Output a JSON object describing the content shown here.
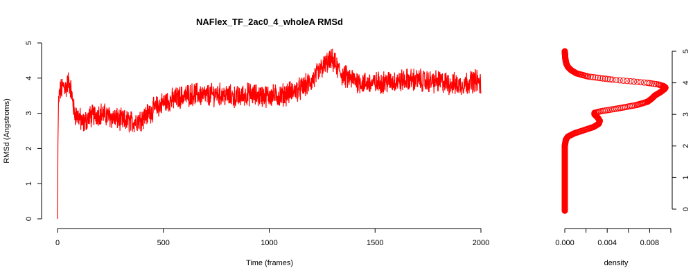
{
  "chart_data": [
    {
      "type": "line",
      "title": "NAFlex_TF_2ac0_4_wholeA RMSd",
      "xlabel": "Time (frames)",
      "ylabel": "RMSd (Angstroms)",
      "xlim": [
        0,
        2000
      ],
      "ylim": [
        0,
        5
      ],
      "x_ticks": [
        0,
        500,
        1000,
        1500,
        2000
      ],
      "y_ticks": [
        0,
        1,
        2,
        3,
        4,
        5
      ],
      "grid": false,
      "line_color": "#ff0000",
      "series": [
        {
          "x": [
            0,
            2,
            5,
            10,
            20,
            30,
            40,
            50,
            60,
            80,
            100,
            120,
            150,
            200,
            250,
            300,
            350,
            400,
            450,
            500,
            550,
            600,
            650,
            700,
            750,
            800,
            850,
            900,
            950,
            1000,
            1050,
            1100,
            1150,
            1200,
            1250,
            1280,
            1300,
            1320,
            1350,
            1400,
            1450,
            1500,
            1550,
            1600,
            1650,
            1700,
            1750,
            1800,
            1850,
            1900,
            1950,
            1980,
            2000
          ],
          "values": [
            0.0,
            2.2,
            3.3,
            3.6,
            3.7,
            3.8,
            3.7,
            3.9,
            3.8,
            3.0,
            2.9,
            2.7,
            2.9,
            3.0,
            2.9,
            2.8,
            2.75,
            2.85,
            3.1,
            3.3,
            3.4,
            3.5,
            3.55,
            3.5,
            3.55,
            3.5,
            3.45,
            3.55,
            3.5,
            3.5,
            3.5,
            3.6,
            3.7,
            3.9,
            4.3,
            4.45,
            4.5,
            4.3,
            4.05,
            3.95,
            3.85,
            3.85,
            3.9,
            3.9,
            3.95,
            3.95,
            3.9,
            3.9,
            3.85,
            3.8,
            3.9,
            3.95,
            3.8
          ]
        }
      ]
    },
    {
      "type": "scatter",
      "xlabel": "density",
      "xlim": [
        0,
        0.01
      ],
      "ylim": [
        0,
        5
      ],
      "x_ticks": [
        "0.000",
        "0.004",
        "0.008"
      ],
      "x_tick_values": [
        0,
        0.004,
        0.008
      ],
      "y_ticks": [
        0,
        1,
        2,
        3,
        4,
        5
      ],
      "y_axis_side": "right",
      "grid": false,
      "marker_color": "#ff0000",
      "series": [
        {
          "y": [
            0.0,
            0.5,
            1.0,
            1.5,
            2.0,
            2.2,
            2.3,
            2.4,
            2.5,
            2.6,
            2.7,
            2.8,
            2.9,
            3.0,
            3.05,
            3.1,
            3.2,
            3.3,
            3.4,
            3.5,
            3.6,
            3.7,
            3.8,
            3.85,
            3.9,
            3.95,
            4.0,
            4.05,
            4.1,
            4.2,
            4.3,
            4.4,
            4.5,
            4.6,
            4.7,
            4.8,
            4.9,
            5.0
          ],
          "values": [
            0.0,
            0.0,
            0.0,
            0.0,
            0.0,
            0.0001,
            0.0003,
            0.0009,
            0.0018,
            0.0027,
            0.0032,
            0.0033,
            0.0031,
            0.0028,
            0.0028,
            0.0034,
            0.0052,
            0.0068,
            0.0078,
            0.0082,
            0.0085,
            0.009,
            0.0094,
            0.0095,
            0.0093,
            0.0088,
            0.0078,
            0.0062,
            0.0045,
            0.0022,
            0.0011,
            0.0006,
            0.0003,
            0.00015,
            8e-05,
            4e-05,
            2e-05,
            0.0
          ]
        }
      ]
    }
  ]
}
